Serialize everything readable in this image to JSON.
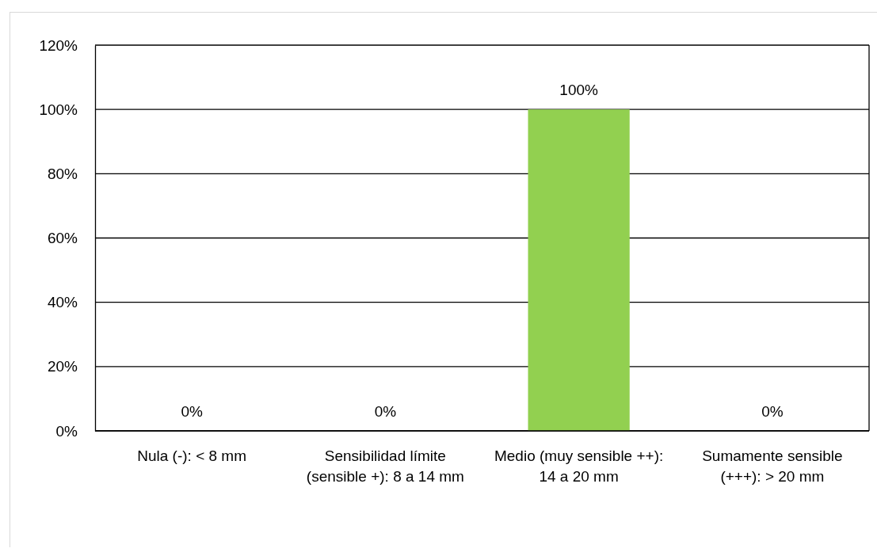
{
  "chart_data": {
    "type": "bar",
    "categories": [
      "Nula (-): < 8 mm",
      "Sensibilidad límite (sensible +): 8 a 14 mm",
      "Medio (muy sensible ++): 14 a 20 mm",
      "Sumamente sensible (+++): > 20 mm"
    ],
    "values": [
      0,
      0,
      100,
      0
    ],
    "value_labels": [
      "0%",
      "0%",
      "100%",
      "0%"
    ],
    "color": "#92d050",
    "ylim": [
      0,
      120
    ],
    "yticks": [
      {
        "value": 0,
        "label": "0%"
      },
      {
        "value": 20,
        "label": "20%"
      },
      {
        "value": 40,
        "label": "40%"
      },
      {
        "value": 60,
        "label": "60%"
      },
      {
        "value": 80,
        "label": "80%"
      },
      {
        "value": 100,
        "label": "100%"
      },
      {
        "value": 120,
        "label": "120%"
      }
    ],
    "grid": "y"
  }
}
